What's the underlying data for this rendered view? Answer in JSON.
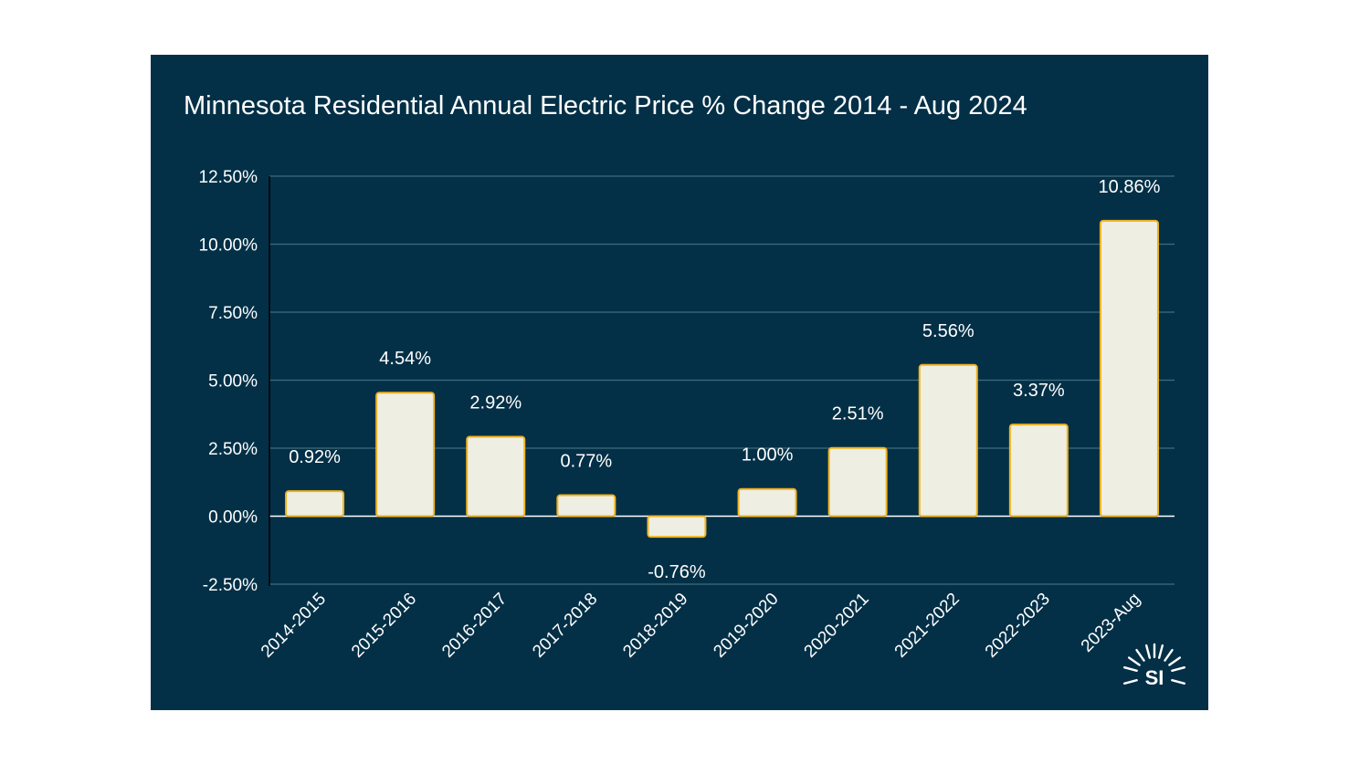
{
  "chart_data": {
    "type": "bar",
    "title": "Minnesota Residential Annual Electric Price % Change 2014 - Aug 2024",
    "xlabel": "",
    "ylabel": "",
    "categories": [
      "2014-2015",
      "2015-2016",
      "2016-2017",
      "2017-2018",
      "2018-2019",
      "2019-2020",
      "2020-2021",
      "2021-2022",
      "2022-2023",
      "2023-Aug"
    ],
    "values": [
      0.92,
      4.54,
      2.92,
      0.77,
      -0.76,
      1.0,
      2.51,
      5.56,
      3.37,
      10.86
    ],
    "data_labels": [
      "0.92%",
      "4.54%",
      "2.92%",
      "0.77%",
      "-0.76%",
      "1.00%",
      "2.51%",
      "5.56%",
      "3.37%",
      "10.86%"
    ],
    "ylim": [
      -2.5,
      12.5
    ],
    "yticks": [
      12.5,
      10,
      7.5,
      5,
      2.5,
      0,
      -2.5
    ],
    "ytick_labels": [
      "12.50%",
      "10.00%",
      "7.50%",
      "5.00%",
      "2.50%",
      "0.00%",
      "-2.50%"
    ],
    "grid": true,
    "legend": "none"
  },
  "logo": {
    "text": "SI"
  },
  "colors": {
    "background": "#033047",
    "bar_fill": "#eeeee2",
    "bar_stroke": "#f2b21d",
    "grid": "#3f6b7d",
    "text": "#ffffff"
  }
}
